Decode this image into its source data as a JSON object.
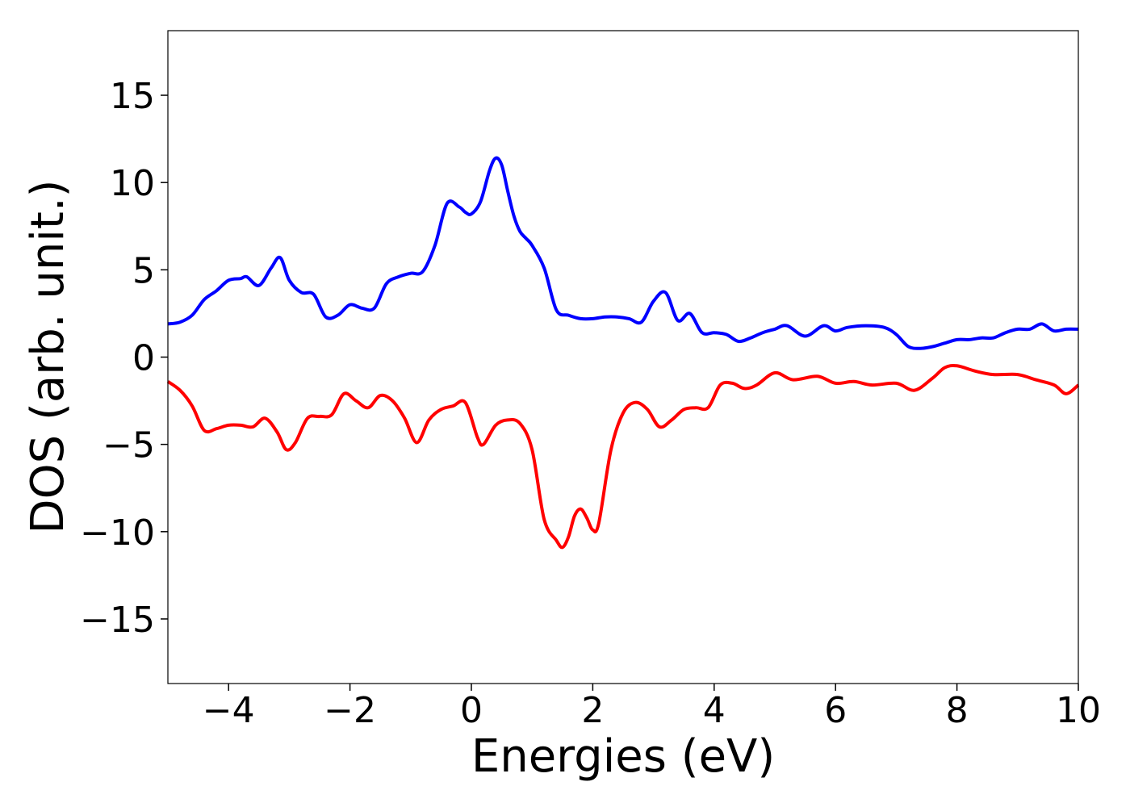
{
  "chart_data": {
    "type": "line",
    "title": "",
    "xlabel": "Energies (eV)",
    "ylabel": "DOS (arb. unit.)",
    "xlim": [
      -5,
      10
    ],
    "ylim": [
      -18.7,
      18.7
    ],
    "xticks": [
      -4,
      -2,
      0,
      2,
      4,
      6,
      8,
      10
    ],
    "yticks": [
      -15,
      -10,
      -5,
      0,
      5,
      10,
      15
    ],
    "xtick_labels": [
      "−4",
      "−2",
      "0",
      "2",
      "4",
      "6",
      "8",
      "10"
    ],
    "ytick_labels": [
      "−15",
      "−10",
      "−5",
      "0",
      "5",
      "10",
      "15"
    ],
    "grid": false,
    "legend": "none",
    "series": [
      {
        "color": "#0000ff",
        "x": [
          -5.0,
          -4.8,
          -4.6,
          -4.4,
          -4.2,
          -4.0,
          -3.8,
          -3.7,
          -3.5,
          -3.3,
          -3.15,
          -3.0,
          -2.8,
          -2.6,
          -2.4,
          -2.2,
          -2.0,
          -1.8,
          -1.6,
          -1.4,
          -1.2,
          -1.0,
          -0.8,
          -0.6,
          -0.4,
          -0.2,
          -0.1,
          0.0,
          0.15,
          0.3,
          0.4,
          0.5,
          0.6,
          0.7,
          0.8,
          0.9,
          1.0,
          1.2,
          1.4,
          1.6,
          1.8,
          2.0,
          2.2,
          2.4,
          2.6,
          2.8,
          3.0,
          3.2,
          3.4,
          3.6,
          3.8,
          4.0,
          4.2,
          4.4,
          4.6,
          4.8,
          5.0,
          5.2,
          5.5,
          5.8,
          6.0,
          6.2,
          6.5,
          6.8,
          7.0,
          7.2,
          7.4,
          7.6,
          7.8,
          8.0,
          8.2,
          8.4,
          8.6,
          8.8,
          9.0,
          9.2,
          9.4,
          9.6,
          9.8,
          10.0
        ],
        "y": [
          1.9,
          2.0,
          2.4,
          3.3,
          3.8,
          4.4,
          4.5,
          4.6,
          4.1,
          5.1,
          5.7,
          4.4,
          3.7,
          3.6,
          2.3,
          2.4,
          3.0,
          2.8,
          2.8,
          4.2,
          4.6,
          4.8,
          4.9,
          6.4,
          8.8,
          8.6,
          8.3,
          8.2,
          8.9,
          10.7,
          11.4,
          11.0,
          9.5,
          8.1,
          7.2,
          6.8,
          6.4,
          5.1,
          2.7,
          2.4,
          2.2,
          2.2,
          2.3,
          2.3,
          2.2,
          2.0,
          3.2,
          3.7,
          2.1,
          2.5,
          1.4,
          1.4,
          1.3,
          0.9,
          1.1,
          1.4,
          1.6,
          1.8,
          1.2,
          1.8,
          1.5,
          1.7,
          1.8,
          1.7,
          1.3,
          0.6,
          0.5,
          0.6,
          0.8,
          1.0,
          1.0,
          1.1,
          1.1,
          1.4,
          1.6,
          1.6,
          1.9,
          1.5,
          1.6,
          1.6
        ]
      },
      {
        "color": "#ff0000",
        "x": [
          -5.0,
          -4.8,
          -4.6,
          -4.4,
          -4.2,
          -4.0,
          -3.8,
          -3.6,
          -3.4,
          -3.2,
          -3.05,
          -2.9,
          -2.7,
          -2.5,
          -2.3,
          -2.1,
          -1.9,
          -1.7,
          -1.5,
          -1.3,
          -1.1,
          -0.9,
          -0.7,
          -0.5,
          -0.3,
          -0.1,
          0.1,
          0.2,
          0.4,
          0.6,
          0.8,
          1.0,
          1.2,
          1.4,
          1.5,
          1.6,
          1.7,
          1.8,
          1.9,
          2.0,
          2.1,
          2.3,
          2.5,
          2.7,
          2.9,
          3.1,
          3.3,
          3.5,
          3.7,
          3.9,
          4.1,
          4.3,
          4.5,
          4.7,
          5.0,
          5.3,
          5.7,
          6.0,
          6.3,
          6.6,
          7.0,
          7.3,
          7.6,
          7.8,
          8.0,
          8.3,
          8.6,
          9.0,
          9.3,
          9.6,
          9.8,
          10.0
        ],
        "y": [
          -1.4,
          -1.9,
          -2.8,
          -4.2,
          -4.1,
          -3.9,
          -3.9,
          -4.0,
          -3.5,
          -4.3,
          -5.3,
          -4.9,
          -3.5,
          -3.4,
          -3.3,
          -2.1,
          -2.5,
          -2.9,
          -2.2,
          -2.5,
          -3.5,
          -4.9,
          -3.6,
          -3.0,
          -2.8,
          -2.6,
          -4.6,
          -5.0,
          -3.9,
          -3.6,
          -3.8,
          -5.3,
          -9.3,
          -10.5,
          -10.9,
          -10.3,
          -9.1,
          -8.7,
          -9.2,
          -9.9,
          -9.5,
          -5.3,
          -3.2,
          -2.6,
          -3.0,
          -4.0,
          -3.6,
          -3.0,
          -2.9,
          -2.9,
          -1.6,
          -1.5,
          -1.8,
          -1.6,
          -0.9,
          -1.3,
          -1.1,
          -1.5,
          -1.4,
          -1.6,
          -1.5,
          -1.9,
          -1.2,
          -0.6,
          -0.5,
          -0.8,
          -1.0,
          -1.0,
          -1.3,
          -1.6,
          -2.1,
          -1.6
        ]
      }
    ]
  }
}
